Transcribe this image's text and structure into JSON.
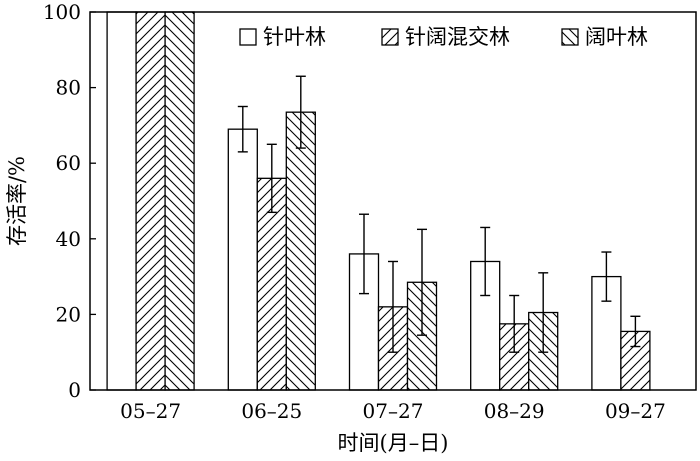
{
  "chart_data": {
    "type": "bar",
    "categories": [
      "05-27",
      "06-25",
      "07-27",
      "08-29",
      "09-27"
    ],
    "series": [
      {
        "name": "针叶林",
        "pattern": "none",
        "values": [
          100,
          69,
          36,
          34,
          30
        ],
        "errors": [
          0,
          6,
          10.5,
          9,
          6.5
        ]
      },
      {
        "name": "针阔混交林",
        "pattern": "diagonal-forward",
        "values": [
          100,
          56,
          22,
          17.5,
          15.5
        ],
        "errors": [
          0,
          9,
          12,
          7.5,
          4
        ]
      },
      {
        "name": "阔叶林",
        "pattern": "diagonal-back",
        "values": [
          100,
          73.5,
          28.5,
          20.5,
          null
        ],
        "errors": [
          0,
          9.5,
          14,
          10.5,
          null
        ]
      }
    ],
    "xlabel": "时间(月–日)",
    "ylabel": "存活率/%",
    "ylim": [
      0,
      100
    ],
    "yticks": [
      0,
      20,
      40,
      60,
      80,
      100
    ],
    "xtick_labels": [
      "05–27",
      "06–25",
      "07–27",
      "08–29",
      "09–27"
    ],
    "legend_position": "top-right",
    "grid": false,
    "colors": {
      "bar_fill": "#ffffff",
      "stroke": "#000000"
    }
  }
}
